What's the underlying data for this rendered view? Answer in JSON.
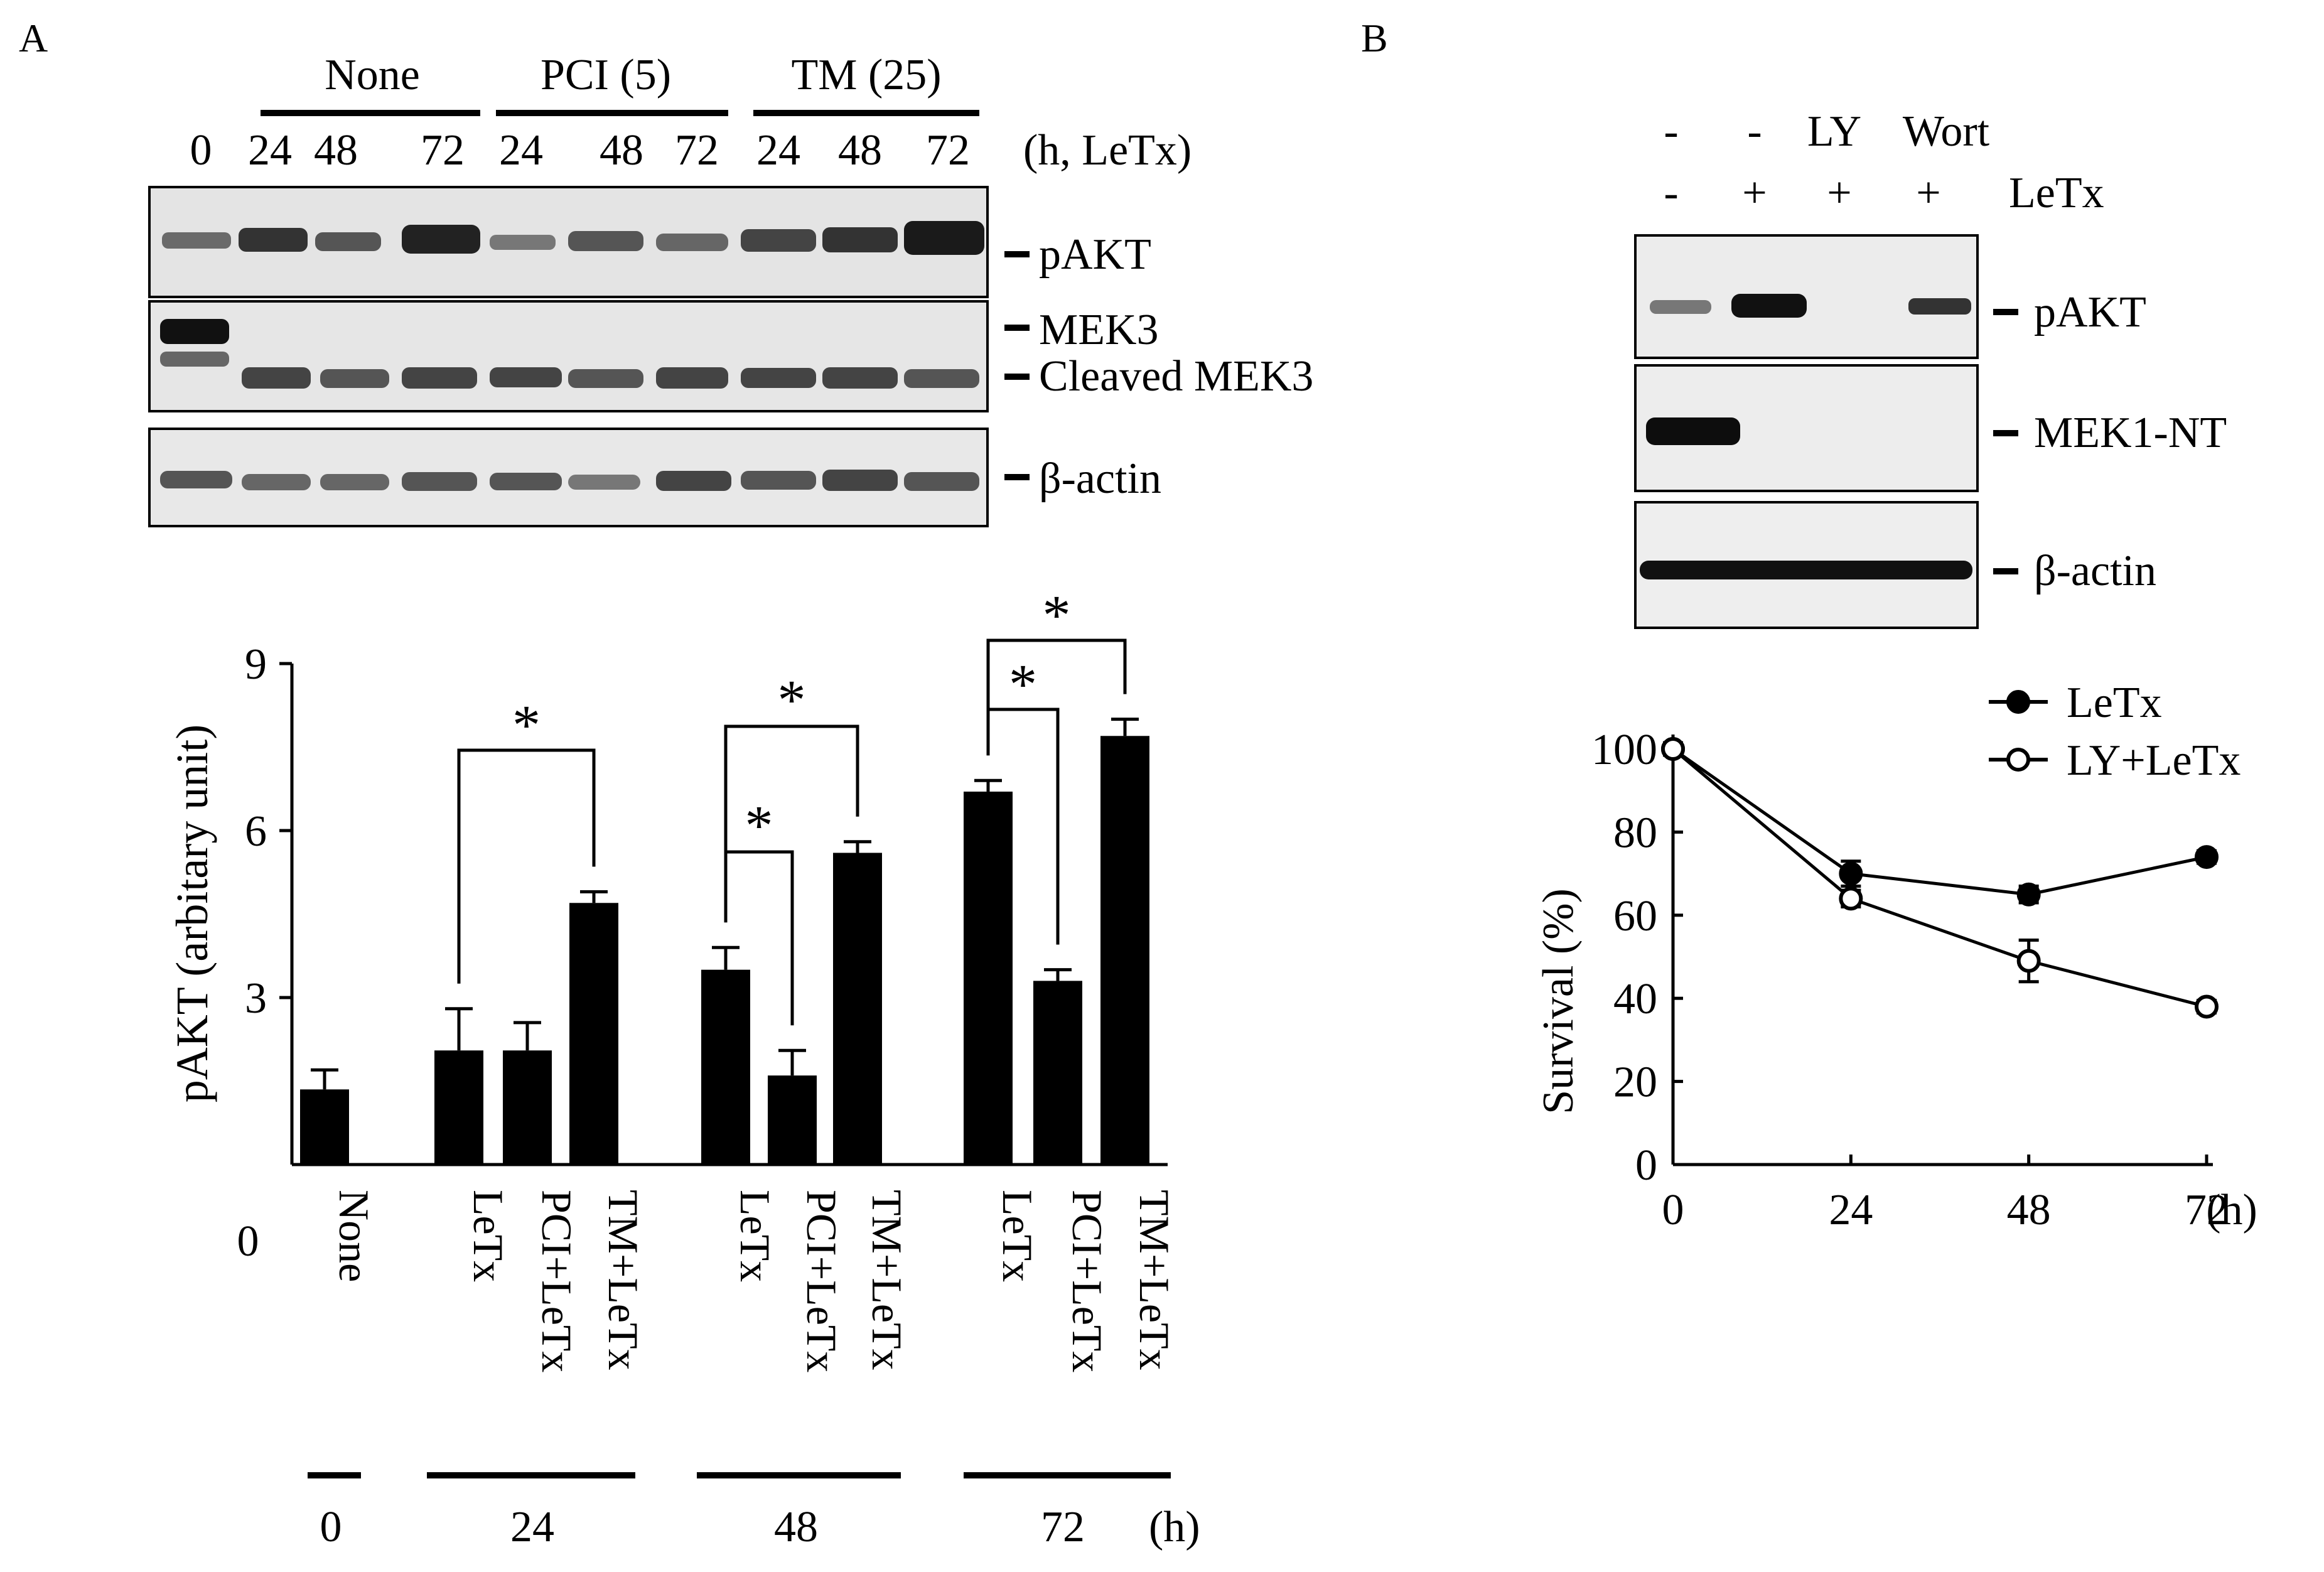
{
  "panel_a": {
    "label": "A",
    "blot": {
      "groups": [
        "None",
        "PCI (5)",
        "TM (25)"
      ],
      "lanes": [
        "0",
        "24",
        "48",
        "72",
        "24",
        "48",
        "72",
        "24",
        "48",
        "72"
      ],
      "time_label": "(h, LeTx)",
      "markers": [
        "pAKT",
        "MEK3",
        "Cleaved MEK3",
        "β-actin"
      ]
    }
  },
  "panel_b": {
    "label": "B",
    "blot": {
      "row1": [
        "-",
        "-",
        "LY",
        "Wort"
      ],
      "row2": [
        "-",
        "+",
        "+",
        "+"
      ],
      "row2_label": "LeTx",
      "markers": [
        "pAKT",
        "MEK1-NT",
        "β-actin"
      ]
    }
  },
  "chart_data": [
    {
      "type": "bar",
      "ylabel": "pAKT (arbitary unit)",
      "ylim": [
        0,
        9
      ],
      "yticks": [
        "0",
        "3",
        "6",
        "9"
      ],
      "categories": [
        "None",
        "LeTx",
        "PCI+LeTx",
        "TM+LeTx",
        "LeTx",
        "PCI+LeTx",
        "TM+LeTx",
        "LeTx",
        "PCI+LeTx",
        "TM+LeTx"
      ],
      "values": [
        1.35,
        2.05,
        2.05,
        4.7,
        3.5,
        1.6,
        5.6,
        6.7,
        3.3,
        7.7
      ],
      "errors": [
        0.35,
        0.75,
        0.5,
        0.2,
        0.4,
        0.45,
        0.2,
        0.2,
        0.2,
        0.3
      ],
      "group_labels": [
        "0",
        "24",
        "48",
        "72"
      ],
      "group_unit": "(h)",
      "significance": "*",
      "color": "#000000"
    },
    {
      "type": "line",
      "ylabel": "Survival (%)",
      "ylim": [
        0,
        100
      ],
      "yticks": [
        "0",
        "20",
        "40",
        "60",
        "80",
        "100"
      ],
      "x": [
        0,
        24,
        48,
        72
      ],
      "xticks": [
        "0",
        "24",
        "48",
        "72"
      ],
      "xunit": "(h)",
      "series": [
        {
          "name": "LeTx",
          "values": [
            100,
            70,
            65,
            74
          ],
          "errors": [
            1.5,
            3,
            2,
            1.5
          ],
          "marker": "filled"
        },
        {
          "name": "LY+LeTx",
          "values": [
            100,
            64,
            49,
            38
          ],
          "errors": [
            1.5,
            2,
            5,
            1.5
          ],
          "marker": "open"
        }
      ]
    }
  ]
}
